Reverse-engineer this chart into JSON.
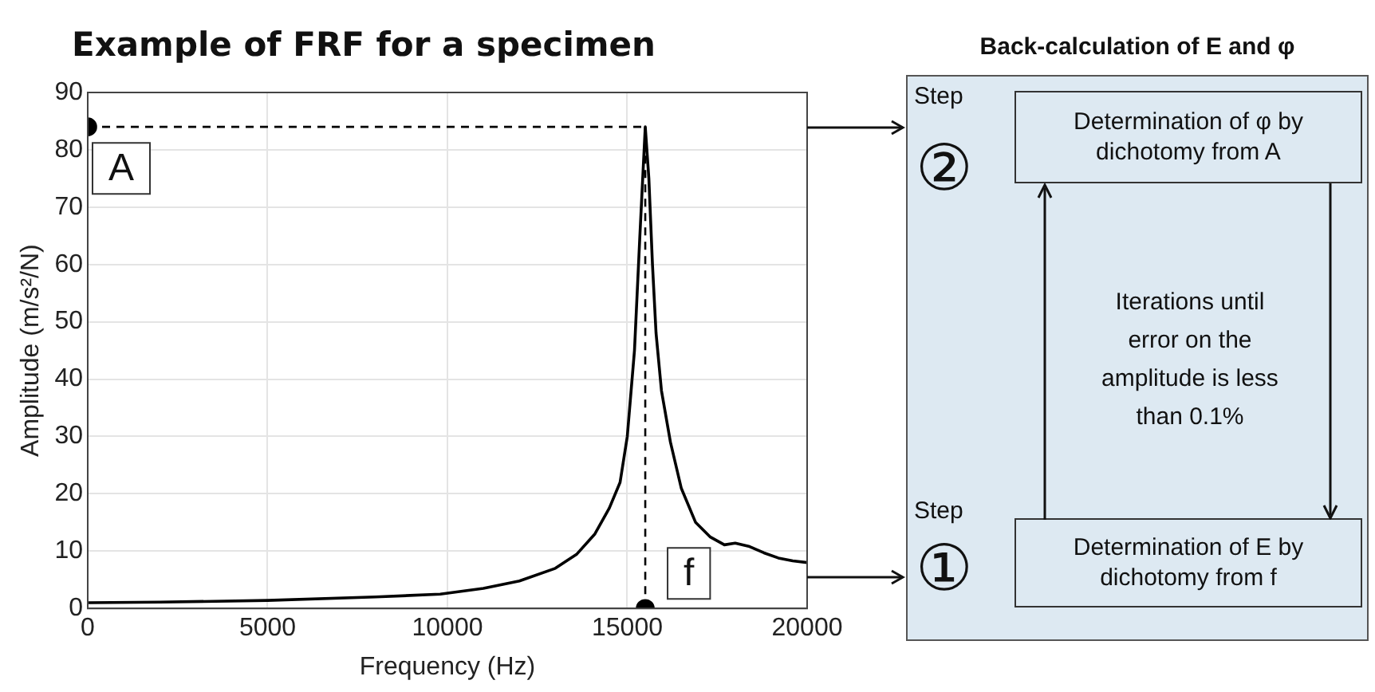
{
  "chart_data": {
    "type": "line",
    "title": "Example of FRF for a specimen",
    "xlabel": "Frequency (Hz)",
    "ylabel": "Amplitude (m/s²/N)",
    "x": [
      0,
      2000,
      5000,
      8000,
      9800,
      11000,
      12000,
      13000,
      13600,
      14100,
      14500,
      14800,
      15000,
      15200,
      15350,
      15500,
      15600,
      15700,
      15800,
      15950,
      16200,
      16500,
      16900,
      17300,
      17700,
      18000,
      18400,
      18800,
      19200,
      19600,
      20000
    ],
    "series": [
      {
        "color": "#000000",
        "values": [
          1.0,
          1.1,
          1.4,
          2.0,
          2.5,
          3.5,
          4.8,
          7.0,
          9.5,
          13,
          17.5,
          22,
          30,
          45,
          65,
          84,
          75,
          60,
          48,
          38,
          29,
          21,
          15,
          12.5,
          11.1,
          11.4,
          10.8,
          9.7,
          8.8,
          8.3,
          8.0
        ]
      },
      {
        "type": "scatter",
        "color": "#000000",
        "marker": "circle",
        "x": [
          0,
          15500
        ],
        "values": [
          84,
          0
        ]
      }
    ],
    "xlim": [
      0,
      20000
    ],
    "xticks": [
      0,
      5000,
      10000,
      15000,
      20000
    ],
    "ylim": [
      0,
      90
    ],
    "yticks": [
      0,
      10,
      20,
      30,
      40,
      50,
      60,
      70,
      80,
      90
    ],
    "grid": true,
    "legend": false,
    "marker": "none",
    "line_style": "solid",
    "ref_lines": [
      {
        "axis": "y",
        "value": 84,
        "line_style": "dashed",
        "color": "#000000"
      },
      {
        "axis": "x",
        "value": 15500,
        "line_style": "dashed",
        "color": "#000000"
      }
    ],
    "annotations": [
      {
        "text": "A",
        "x": 0,
        "y": 84
      },
      {
        "text": "f",
        "x": 15500,
        "y": 0
      },
      "Back-calculation of E and φ",
      "Determination of φ by dichotomy from A",
      "Iterations until error on the amplitude is less than 0.1%",
      "Determination of E by dichotomy from f",
      "Step",
      "②",
      "Step",
      "①"
    ]
  }
}
